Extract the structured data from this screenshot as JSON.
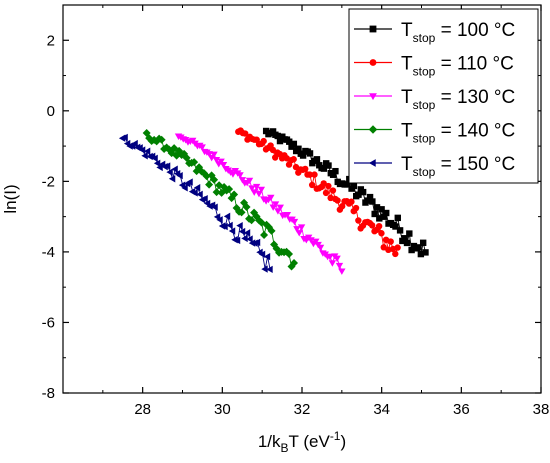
{
  "chart_data": {
    "type": "scatter",
    "xlabel": {
      "main": "1/k",
      "sub": "B",
      "rest": "T (eV",
      "sup": "-1",
      "end": ")"
    },
    "ylabel": "ln(I)",
    "xlim": [
      26,
      38
    ],
    "ylim": [
      -8,
      3
    ],
    "x_ticks": [
      28,
      30,
      32,
      34,
      36,
      38
    ],
    "y_ticks": [
      -8,
      -6,
      -4,
      -2,
      0,
      2
    ],
    "x_tick_labels": [
      "28",
      "30",
      "32",
      "34",
      "36",
      "38"
    ],
    "y_tick_labels": [
      "-8",
      "-6",
      "-4",
      "-2",
      "0",
      "2"
    ],
    "grid": false,
    "legend_position": "top-right",
    "series": [
      {
        "label_main": "T",
        "label_sub": "stop",
        "label_rest": " = 100 °C",
        "color": "#000000",
        "marker": "square",
        "x_start": 31.1,
        "x_end": 35.1,
        "points": 70,
        "y_start": -0.6,
        "y_end": -4.0,
        "curvature": 0.7,
        "noise": 0.15
      },
      {
        "label_main": "T",
        "label_sub": "stop",
        "label_rest": " = 110 °C",
        "color": "#ff0000",
        "marker": "circle",
        "x_start": 30.4,
        "x_end": 34.4,
        "points": 70,
        "y_start": -0.6,
        "y_end": -4.0,
        "curvature": 0.7,
        "noise": 0.15
      },
      {
        "label_main": "T",
        "label_sub": "stop",
        "label_rest": " = 130 °C",
        "color": "#ff00ff",
        "marker": "triangle-down",
        "x_start": 28.9,
        "x_end": 33.0,
        "points": 70,
        "y_start": -0.7,
        "y_end": -4.5,
        "curvature": 0.7,
        "noise": 0.1
      },
      {
        "label_main": "T",
        "label_sub": "stop",
        "label_rest": " = 140 °C",
        "color": "#008000",
        "marker": "diamond",
        "x_start": 28.1,
        "x_end": 31.8,
        "points": 60,
        "y_start": -0.7,
        "y_end": -4.2,
        "curvature": 0.7,
        "noise": 0.15
      },
      {
        "label_main": "T",
        "label_sub": "stop",
        "label_rest": " = 150 °C",
        "color": "#000080",
        "marker": "triangle-left",
        "x_start": 27.5,
        "x_end": 31.2,
        "points": 60,
        "y_start": -0.8,
        "y_end": -4.4,
        "curvature": 0.7,
        "noise": 0.15
      }
    ]
  }
}
